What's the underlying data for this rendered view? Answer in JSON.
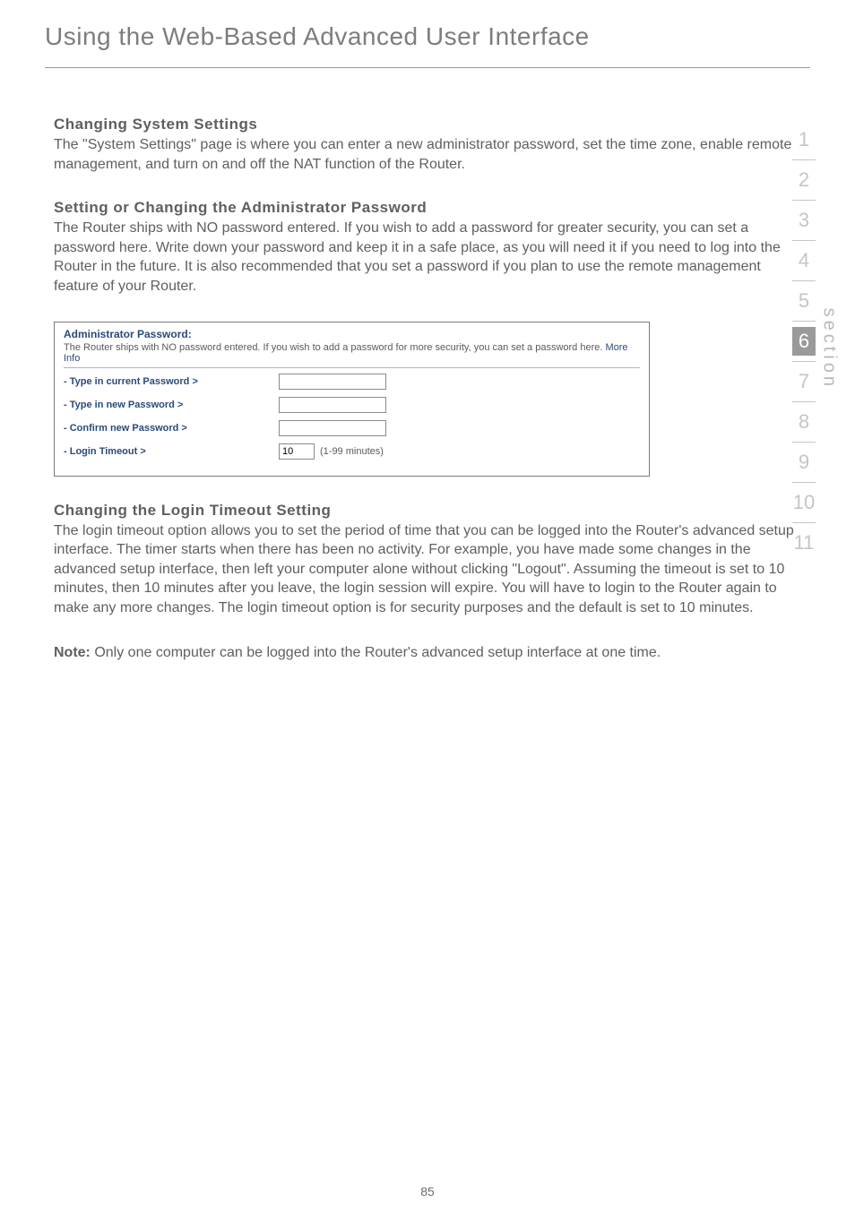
{
  "header": {
    "title": "Using the Web-Based Advanced User Interface"
  },
  "content": {
    "h1": "Changing System Settings",
    "p1": "The \"System Settings\" page is where you can enter a new administrator password, set the time zone, enable remote management, and turn on and off the NAT function of the Router.",
    "h2": "Setting or Changing the Administrator Password",
    "p2": "The Router ships with NO password entered. If you wish to add a password for greater security, you can set a password here. Write down your password and keep it in a safe place, as you will need it if you need to log into the Router in the future. It is also recommended that you set a password if you plan to use the remote management feature of your Router.",
    "h3": "Changing the Login Timeout Setting",
    "p3": "The login timeout option allows you to set the period of time that you can be logged into the Router's advanced setup interface. The timer starts when there has been no activity. For example, you have made some changes in the advanced setup interface, then left your computer alone without clicking \"Logout\". Assuming the timeout is set to 10 minutes, then 10 minutes after you leave, the login session will expire. You will have to login to the Router again to make any more changes. The login timeout option is for security purposes and the default is set to 10 minutes.",
    "note_label": "Note:",
    "note_body": " Only one computer can be logged into the Router's advanced setup interface at one time."
  },
  "panel": {
    "title": "Administrator Password:",
    "desc": "The Router ships with NO password entered. If you wish to add a password for more security, you can set a password here. ",
    "link": "More Info",
    "row1_label": "- Type in current Password >",
    "row2_label": "- Type in new Password >",
    "row3_label": "- Confirm new Password >",
    "row4_label": "- Login Timeout >",
    "timeout_value": "10",
    "timeout_unit": "(1-99 minutes)"
  },
  "nav": {
    "items": [
      "1",
      "2",
      "3",
      "4",
      "5",
      "6",
      "7",
      "8",
      "9",
      "10",
      "11"
    ],
    "active_index": 5,
    "side_label": "section"
  },
  "colors": {
    "heading_gray": "#7d7d7d",
    "body_gray": "#5f5f5f",
    "panel_blue": "#2a4a7a",
    "nav_inactive": "#c5c5c5",
    "nav_active_bg": "#9a9a9a"
  },
  "page_number": "85"
}
